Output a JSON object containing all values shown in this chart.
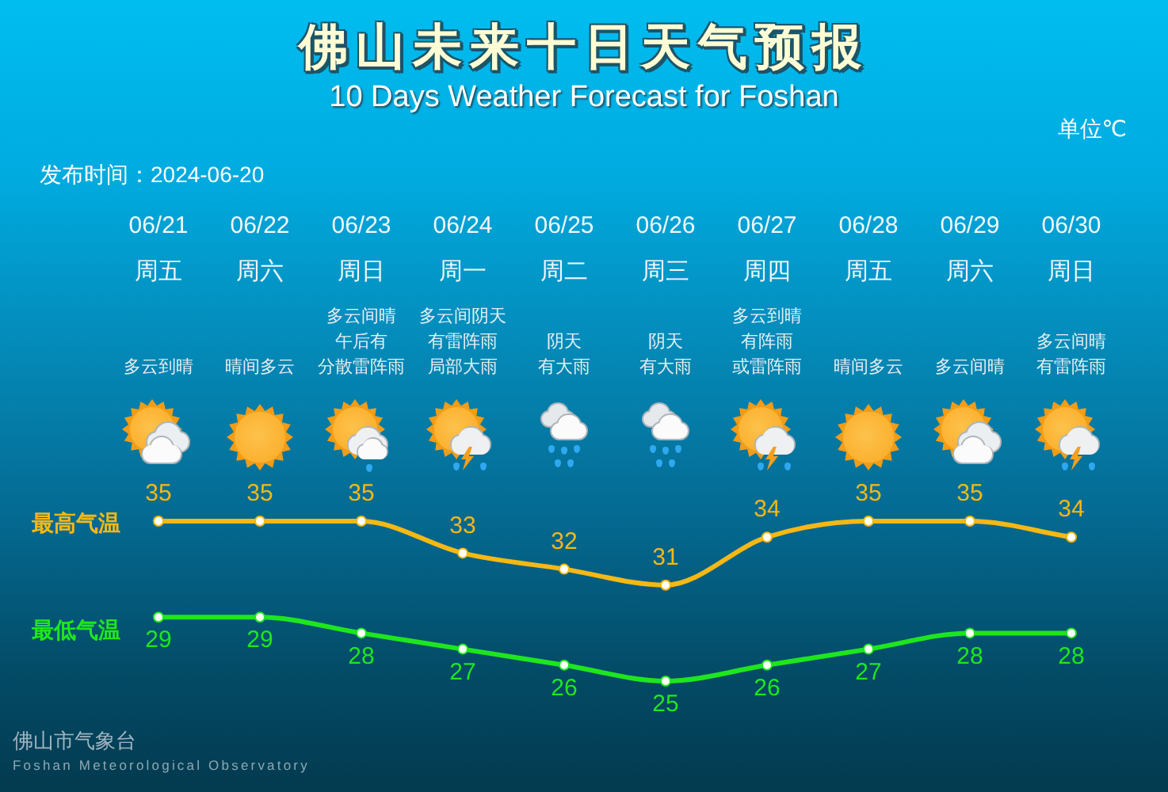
{
  "chart_data": {
    "type": "line",
    "title": "佛山未来十日天气预报",
    "subtitle": "10 Days Weather Forecast for Foshan",
    "categories": [
      "06/21\n周五",
      "06/22\n周六",
      "06/23\n周日",
      "06/24\n周一",
      "06/25\n周二",
      "06/26\n周三",
      "06/27\n周四",
      "06/28\n周五",
      "06/29\n周六",
      "06/30\n周日"
    ],
    "series": [
      {
        "name": "最高气温",
        "color": "#f5b814",
        "values": [
          35,
          35,
          35,
          33,
          32,
          31,
          34,
          35,
          35,
          34
        ]
      },
      {
        "name": "最低气温",
        "color": "#1ee61e",
        "values": [
          29,
          29,
          28,
          27,
          26,
          25,
          26,
          27,
          28,
          28
        ]
      }
    ],
    "data_labels": true,
    "marker": "circle",
    "tick_labels": "x",
    "annotations": [
      "单位℃",
      "发布时间：2024-06-20",
      "多云到晴",
      "晴间多云",
      "多云间晴午后有分散雷阵雨",
      "多云间阴天有雷阵雨局部大雨",
      "阴天有大雨",
      "阴天有大雨",
      "多云到晴有阵雨或雷阵雨",
      "晴间多云",
      "多云间晴",
      "多云间晴有雷阵雨",
      "佛山市气象台",
      "Foshan Meteorological Observatory"
    ]
  }
}
